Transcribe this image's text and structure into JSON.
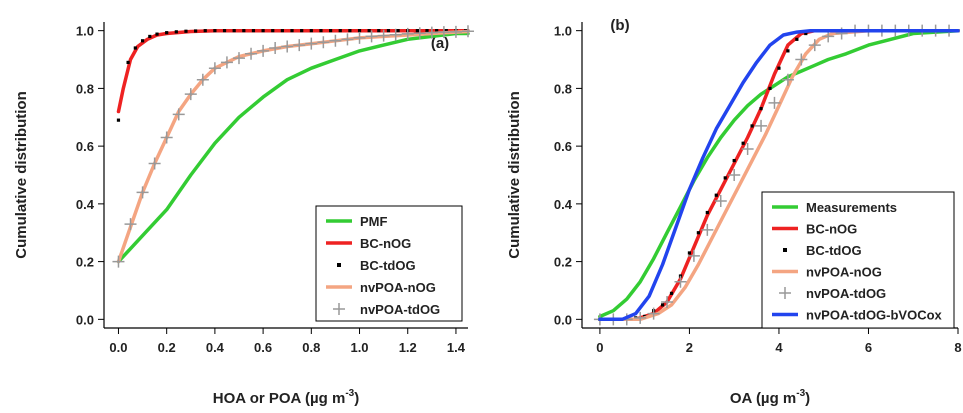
{
  "chart_data": [
    {
      "type": "line",
      "panel_label": "(a)",
      "xlabel": "HOA or POA (µg m",
      "xlabel_sup": "-3",
      "xlabel_end": ")",
      "ylabel": "Cumulative distribution",
      "xlim": [
        -0.06,
        1.45
      ],
      "ylim": [
        -0.03,
        1.03
      ],
      "xticks": [
        0.0,
        0.2,
        0.4,
        0.6,
        0.8,
        1.0,
        1.2,
        1.4
      ],
      "xtick_labels": [
        "0.0",
        "0.2",
        "0.4",
        "0.6",
        "0.8",
        "1.0",
        "1.2",
        "1.4"
      ],
      "yticks": [
        0.0,
        0.2,
        0.4,
        0.6,
        0.8,
        1.0
      ],
      "ytick_labels": [
        "0.0",
        "0.2",
        "0.4",
        "0.6",
        "0.8",
        "1.0"
      ],
      "legend_position": "bottom-right",
      "series": [
        {
          "name": "PMF",
          "style": "line",
          "color": "#33cc33",
          "x": [
            0.0,
            0.1,
            0.2,
            0.3,
            0.4,
            0.5,
            0.6,
            0.7,
            0.8,
            0.9,
            1.0,
            1.1,
            1.2,
            1.3,
            1.4,
            1.45
          ],
          "y": [
            0.2,
            0.29,
            0.38,
            0.5,
            0.61,
            0.7,
            0.77,
            0.83,
            0.87,
            0.9,
            0.93,
            0.95,
            0.97,
            0.98,
            0.99,
            0.99
          ]
        },
        {
          "name": "BC-nOG",
          "style": "line",
          "color": "#ee2222",
          "x": [
            0.0,
            0.02,
            0.05,
            0.08,
            0.12,
            0.16,
            0.2,
            0.3,
            0.4,
            0.6,
            1.0,
            1.45
          ],
          "y": [
            0.72,
            0.8,
            0.9,
            0.945,
            0.97,
            0.985,
            0.99,
            0.997,
            1.0,
            1.0,
            1.0,
            1.0
          ]
        },
        {
          "name": "BC-tdOG",
          "style": "dots",
          "color": "#000000",
          "x": [
            0.0,
            0.04,
            0.07,
            0.1,
            0.13,
            0.16,
            0.2,
            0.24,
            0.28,
            0.32,
            0.36,
            0.4,
            0.44,
            0.48,
            0.52,
            0.56,
            0.6,
            0.64,
            0.68,
            0.72,
            0.76,
            0.8,
            0.84,
            0.88,
            0.92,
            0.96,
            1.0,
            1.04,
            1.08,
            1.12,
            1.16,
            1.2,
            1.24,
            1.28,
            1.32,
            1.36,
            1.4,
            1.44
          ],
          "y": [
            0.69,
            0.89,
            0.94,
            0.965,
            0.98,
            0.988,
            0.993,
            0.996,
            0.998,
            0.999,
            1.0,
            1.0,
            1.0,
            1.0,
            1.0,
            1.0,
            1.0,
            1.0,
            1.0,
            1.0,
            1.0,
            1.0,
            1.0,
            1.0,
            1.0,
            1.0,
            1.0,
            1.0,
            1.0,
            1.0,
            1.0,
            1.0,
            1.0,
            1.0,
            1.0,
            1.0,
            1.0,
            1.0
          ]
        },
        {
          "name": "nvPOA-nOG",
          "style": "line",
          "color": "#f4a582",
          "x": [
            0.0,
            0.05,
            0.1,
            0.15,
            0.2,
            0.25,
            0.3,
            0.35,
            0.4,
            0.5,
            0.6,
            0.7,
            0.8,
            0.9,
            1.0,
            1.1,
            1.2,
            1.3,
            1.4,
            1.45
          ],
          "y": [
            0.2,
            0.32,
            0.44,
            0.54,
            0.63,
            0.72,
            0.78,
            0.83,
            0.87,
            0.91,
            0.93,
            0.945,
            0.955,
            0.965,
            0.975,
            0.98,
            0.985,
            0.99,
            0.995,
            0.997
          ]
        },
        {
          "name": "nvPOA-tdOG",
          "style": "plus",
          "color": "#999999",
          "x": [
            0.0,
            0.05,
            0.1,
            0.15,
            0.2,
            0.25,
            0.3,
            0.35,
            0.4,
            0.45,
            0.5,
            0.55,
            0.6,
            0.65,
            0.7,
            0.75,
            0.8,
            0.85,
            0.9,
            0.95,
            1.0,
            1.05,
            1.1,
            1.15,
            1.2,
            1.25,
            1.3,
            1.35,
            1.4,
            1.45
          ],
          "y": [
            0.2,
            0.33,
            0.44,
            0.54,
            0.63,
            0.71,
            0.78,
            0.83,
            0.87,
            0.89,
            0.905,
            0.92,
            0.93,
            0.94,
            0.945,
            0.95,
            0.955,
            0.96,
            0.965,
            0.97,
            0.975,
            0.98,
            0.983,
            0.986,
            0.989,
            0.991,
            0.993,
            0.995,
            0.996,
            0.998
          ]
        }
      ]
    },
    {
      "type": "line",
      "panel_label": "(b)",
      "xlabel": "OA (µg m",
      "xlabel_sup": "-3",
      "xlabel_end": ")",
      "ylabel": "Cumulative distribution",
      "xlim": [
        -0.4,
        8.0
      ],
      "ylim": [
        -0.03,
        1.03
      ],
      "xticks": [
        0,
        2,
        4,
        6,
        8
      ],
      "xtick_labels": [
        "0",
        "2",
        "4",
        "6",
        "8"
      ],
      "yticks": [
        0.0,
        0.2,
        0.4,
        0.6,
        0.8,
        1.0
      ],
      "ytick_labels": [
        "0.0",
        "0.2",
        "0.4",
        "0.6",
        "0.8",
        "1.0"
      ],
      "legend_position": "bottom-right",
      "series": [
        {
          "name": "Measurements",
          "style": "line",
          "color": "#33cc33",
          "x": [
            0.0,
            0.3,
            0.6,
            0.9,
            1.2,
            1.5,
            1.8,
            2.1,
            2.4,
            2.7,
            3.0,
            3.3,
            3.6,
            3.9,
            4.2,
            4.5,
            4.8,
            5.1,
            5.5,
            6.0,
            6.5,
            7.0,
            7.5,
            8.0
          ],
          "y": [
            0.01,
            0.03,
            0.07,
            0.13,
            0.21,
            0.3,
            0.39,
            0.48,
            0.56,
            0.63,
            0.69,
            0.74,
            0.78,
            0.81,
            0.84,
            0.86,
            0.88,
            0.9,
            0.92,
            0.95,
            0.97,
            0.99,
            0.995,
            1.0
          ]
        },
        {
          "name": "BC-nOG",
          "style": "line",
          "color": "#ee2222",
          "x": [
            0.0,
            0.8,
            1.2,
            1.5,
            1.8,
            2.1,
            2.4,
            2.7,
            3.0,
            3.3,
            3.6,
            3.9,
            4.2,
            4.5,
            4.8,
            6.0,
            8.0
          ],
          "y": [
            0.0,
            0.0,
            0.02,
            0.06,
            0.14,
            0.25,
            0.36,
            0.45,
            0.54,
            0.63,
            0.73,
            0.85,
            0.95,
            0.99,
            1.0,
            1.0,
            1.0
          ]
        },
        {
          "name": "BC-tdOG",
          "style": "dots",
          "color": "#000000",
          "x": [
            0.0,
            0.2,
            0.4,
            0.6,
            0.8,
            1.0,
            1.2,
            1.4,
            1.6,
            1.8,
            2.0,
            2.2,
            2.4,
            2.6,
            2.8,
            3.0,
            3.2,
            3.4,
            3.6,
            3.8,
            4.0,
            4.2,
            4.4,
            4.6,
            4.8,
            5.0,
            5.2,
            5.4,
            5.6,
            5.8,
            6.0,
            6.2,
            6.4,
            6.6,
            6.8,
            7.0,
            7.2,
            7.4,
            7.6,
            7.8,
            8.0
          ],
          "y": [
            0.0,
            0.0,
            0.0,
            0.0,
            0.005,
            0.01,
            0.03,
            0.05,
            0.09,
            0.15,
            0.23,
            0.3,
            0.37,
            0.43,
            0.49,
            0.55,
            0.61,
            0.67,
            0.73,
            0.8,
            0.87,
            0.93,
            0.97,
            0.99,
            1.0,
            1.0,
            1.0,
            1.0,
            1.0,
            1.0,
            1.0,
            1.0,
            1.0,
            1.0,
            1.0,
            1.0,
            1.0,
            1.0,
            1.0,
            1.0,
            1.0
          ]
        },
        {
          "name": "nvPOA-nOG",
          "style": "line",
          "color": "#f4a582",
          "x": [
            0.0,
            0.9,
            1.3,
            1.6,
            1.9,
            2.2,
            2.5,
            2.8,
            3.1,
            3.4,
            3.7,
            4.0,
            4.3,
            4.6,
            4.9,
            5.2,
            6.0,
            8.0
          ],
          "y": [
            0.0,
            0.0,
            0.02,
            0.05,
            0.11,
            0.19,
            0.28,
            0.37,
            0.46,
            0.55,
            0.64,
            0.74,
            0.84,
            0.92,
            0.97,
            0.99,
            1.0,
            1.0
          ]
        },
        {
          "name": "nvPOA-tdOG",
          "style": "plus",
          "color": "#999999",
          "x": [
            0.0,
            0.3,
            0.6,
            0.9,
            1.2,
            1.5,
            1.8,
            2.1,
            2.4,
            2.7,
            3.0,
            3.3,
            3.6,
            3.9,
            4.2,
            4.5,
            4.8,
            5.1,
            5.4,
            5.7,
            6.0,
            6.3,
            6.6,
            6.9,
            7.2,
            7.5,
            7.8
          ],
          "y": [
            0.0,
            0.0,
            0.0,
            0.005,
            0.02,
            0.06,
            0.13,
            0.22,
            0.31,
            0.41,
            0.5,
            0.59,
            0.67,
            0.75,
            0.83,
            0.9,
            0.95,
            0.98,
            0.99,
            1.0,
            1.0,
            1.0,
            1.0,
            1.0,
            1.0,
            1.0,
            1.0
          ]
        },
        {
          "name": "nvPOA-tdOG-bVOCox",
          "style": "line",
          "color": "#2244ee",
          "x": [
            0.0,
            0.5,
            0.8,
            1.1,
            1.4,
            1.7,
            2.0,
            2.3,
            2.6,
            2.9,
            3.2,
            3.5,
            3.8,
            4.1,
            4.4,
            4.7,
            5.0,
            6.0,
            8.0
          ],
          "y": [
            0.0,
            0.0,
            0.02,
            0.08,
            0.19,
            0.32,
            0.45,
            0.56,
            0.66,
            0.74,
            0.82,
            0.89,
            0.95,
            0.985,
            0.995,
            1.0,
            1.0,
            1.0,
            1.0
          ]
        }
      ]
    }
  ]
}
